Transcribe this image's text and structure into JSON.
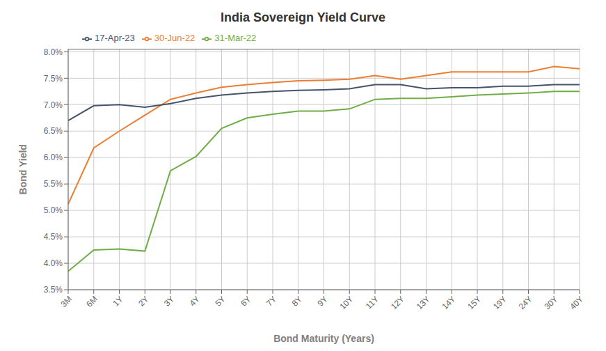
{
  "chart_data": {
    "type": "line",
    "title": "India Sovereign Yield Curve",
    "xlabel": "Bond Maturity (Years)",
    "ylabel": "Bond Yield",
    "categories": [
      "3M",
      "6M",
      "1Y",
      "2Y",
      "3Y",
      "4Y",
      "5Y",
      "6Y",
      "7Y",
      "8Y",
      "9Y",
      "10Y",
      "11Y",
      "12Y",
      "13Y",
      "14Y",
      "15Y",
      "19Y",
      "24Y",
      "30Y",
      "40Y"
    ],
    "series": [
      {
        "name": "31-Mar-22",
        "color": "#70AD47",
        "values": [
          3.85,
          4.25,
          4.27,
          4.23,
          5.75,
          6.02,
          6.55,
          6.75,
          6.82,
          6.88,
          6.88,
          6.92,
          7.1,
          7.12,
          7.12,
          7.15,
          7.18,
          7.2,
          7.22,
          7.25,
          7.25
        ]
      },
      {
        "name": "30-Jun-22",
        "color": "#ED7D31",
        "values": [
          5.12,
          6.18,
          6.5,
          6.8,
          7.1,
          7.22,
          7.33,
          7.38,
          7.42,
          7.45,
          7.46,
          7.48,
          7.55,
          7.48,
          7.55,
          7.62,
          7.62,
          7.62,
          7.62,
          7.72,
          7.68
        ]
      },
      {
        "name": "17-Apr-23",
        "color": "#44546A",
        "values": [
          6.7,
          6.98,
          7.0,
          6.95,
          7.02,
          7.12,
          7.18,
          7.22,
          7.25,
          7.27,
          7.28,
          7.3,
          7.38,
          7.38,
          7.3,
          7.32,
          7.32,
          7.35,
          7.35,
          7.38,
          7.38
        ]
      }
    ],
    "ylim": [
      3.5,
      8.05
    ],
    "yticks": [
      {
        "value": 3.5,
        "label": "3.5%"
      },
      {
        "value": 4.0,
        "label": "4.0%"
      },
      {
        "value": 4.5,
        "label": "4.5%"
      },
      {
        "value": 5.0,
        "label": "5.0%"
      },
      {
        "value": 5.5,
        "label": "5.5%"
      },
      {
        "value": 6.0,
        "label": "6.0%"
      },
      {
        "value": 6.5,
        "label": "6.5%"
      },
      {
        "value": 7.0,
        "label": "7.0%"
      },
      {
        "value": 7.5,
        "label": "7.5%"
      },
      {
        "value": 8.0,
        "label": "8.0%"
      }
    ],
    "grid": true,
    "legend": "upper left"
  }
}
